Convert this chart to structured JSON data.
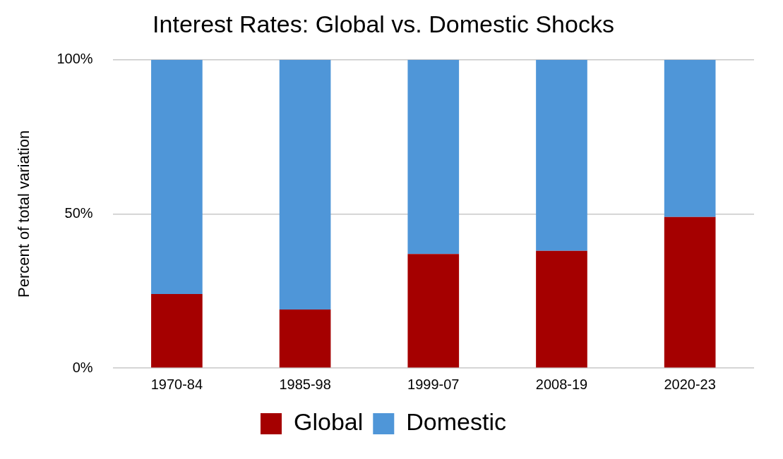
{
  "chart_data": {
    "type": "bar",
    "title": "Interest Rates: Global vs. Domestic Shocks",
    "ylabel": "Percent of total variation",
    "categories": [
      "1970-84",
      "1985-98",
      "1999-07",
      "2008-19",
      "2020-23"
    ],
    "series": [
      {
        "name": "Global",
        "color": "#a50000",
        "values": [
          24,
          19,
          37,
          38,
          49
        ]
      },
      {
        "name": "Domestic",
        "color": "#4f96d8",
        "values": [
          76,
          81,
          63,
          62,
          51
        ]
      }
    ],
    "stacked": true,
    "ylim": [
      0,
      100
    ],
    "yticks": [
      {
        "value": 0,
        "label": "0%"
      },
      {
        "value": 50,
        "label": "50%"
      },
      {
        "value": 100,
        "label": "100%"
      }
    ],
    "grid": "y",
    "legend": "bottom"
  }
}
